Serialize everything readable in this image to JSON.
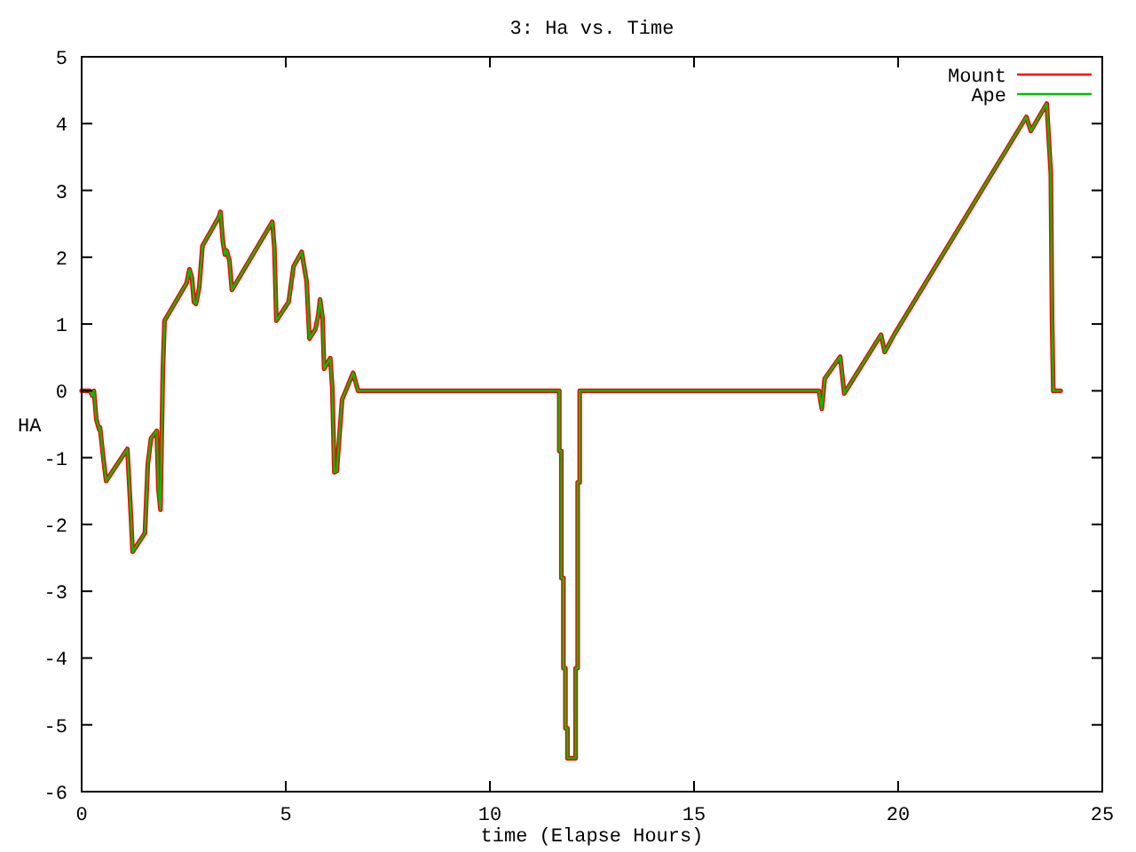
{
  "chart_data": {
    "type": "line",
    "title": "3: Ha vs. Time",
    "xlabel": "time (Elapse Hours)",
    "ylabel": "HA",
    "xlim": [
      0,
      25
    ],
    "xticks": [
      0,
      5,
      10,
      15,
      20,
      25
    ],
    "ylim": [
      -6,
      5
    ],
    "yticks": [
      -6,
      -5,
      -4,
      -3,
      -2,
      -1,
      0,
      1,
      2,
      3,
      4,
      5
    ],
    "grid": false,
    "legend": "top right",
    "line_style": "solid",
    "marker": "none",
    "series": [
      {
        "name": "Mount",
        "color": "#ff0000",
        "x": [
          0,
          0.2,
          0.26,
          0.3,
          0.36,
          0.43,
          0.45,
          0.53,
          0.6,
          1.12,
          1.19,
          1.25,
          1.55,
          1.62,
          1.7,
          1.84,
          1.88,
          1.93,
          1.99,
          2.03,
          2.57,
          2.64,
          2.7,
          2.75,
          2.8,
          2.88,
          2.96,
          3.36,
          3.4,
          3.46,
          3.51,
          3.55,
          3.62,
          3.68,
          4.67,
          4.72,
          4.77,
          5.07,
          5.19,
          5.39,
          5.51,
          5.58,
          5.73,
          5.8,
          5.84,
          5.9,
          5.94,
          6.09,
          6.14,
          6.19,
          6.25,
          6.38,
          6.65,
          6.77,
          11.7,
          11.7,
          11.75,
          11.75,
          11.8,
          11.8,
          11.85,
          11.85,
          11.9,
          11.9,
          12.1,
          12.1,
          12.15,
          12.15,
          12.2,
          12.2,
          18.06,
          18.13,
          18.2,
          18.58,
          18.68,
          19.58,
          19.67,
          19.91,
          23.14,
          23.25,
          23.64,
          23.74,
          23.77,
          23.8,
          23.98
        ],
        "values": [
          0,
          0,
          -0.07,
          0,
          -0.43,
          -0.58,
          -0.55,
          -1.0,
          -1.35,
          -0.87,
          -1.67,
          -2.41,
          -2.13,
          -1.1,
          -0.71,
          -0.6,
          -1.46,
          -1.78,
          0.32,
          1.05,
          1.61,
          1.82,
          1.7,
          1.33,
          1.3,
          1.55,
          2.17,
          2.6,
          2.68,
          2.23,
          2.04,
          2.1,
          1.95,
          1.51,
          2.53,
          2.15,
          1.05,
          1.33,
          1.86,
          2.08,
          1.64,
          0.78,
          0.93,
          1.15,
          1.37,
          1.1,
          0.33,
          0.49,
          0.04,
          -1.22,
          -1.2,
          -0.13,
          0.27,
          0,
          0,
          -0.9,
          -0.9,
          -2.8,
          -2.8,
          -4.15,
          -4.15,
          -5.05,
          -5.05,
          -5.5,
          -5.5,
          -4.15,
          -4.15,
          -1.37,
          -1.37,
          0,
          0,
          -0.27,
          0.18,
          0.51,
          -0.04,
          0.84,
          0.58,
          0.85,
          4.1,
          3.89,
          4.3,
          3.24,
          1.06,
          0,
          0
        ]
      },
      {
        "name": "Ape",
        "color": "#00c000",
        "x": [
          0,
          0.2,
          0.26,
          0.3,
          0.36,
          0.43,
          0.45,
          0.53,
          0.6,
          1.12,
          1.19,
          1.25,
          1.55,
          1.62,
          1.7,
          1.84,
          1.88,
          1.93,
          1.99,
          2.03,
          2.57,
          2.64,
          2.7,
          2.75,
          2.8,
          2.88,
          2.96,
          3.36,
          3.4,
          3.46,
          3.51,
          3.55,
          3.62,
          3.68,
          4.67,
          4.72,
          4.77,
          5.07,
          5.19,
          5.39,
          5.51,
          5.58,
          5.73,
          5.8,
          5.84,
          5.9,
          5.94,
          6.09,
          6.14,
          6.19,
          6.25,
          6.38,
          6.65,
          6.77,
          11.7,
          11.7,
          11.75,
          11.75,
          11.8,
          11.8,
          11.85,
          11.85,
          11.9,
          11.9,
          12.1,
          12.1,
          12.15,
          12.15,
          12.2,
          12.2,
          18.06,
          18.13,
          18.2,
          18.58,
          18.68,
          19.58,
          19.67,
          19.91,
          23.14,
          23.25,
          23.64,
          23.74,
          23.77,
          23.8,
          23.98
        ],
        "values": [
          0,
          0,
          -0.07,
          0,
          -0.43,
          -0.58,
          -0.55,
          -1.0,
          -1.35,
          -0.87,
          -1.67,
          -2.41,
          -2.13,
          -1.1,
          -0.71,
          -0.6,
          -1.46,
          -1.78,
          0.32,
          1.05,
          1.61,
          1.82,
          1.7,
          1.33,
          1.3,
          1.55,
          2.17,
          2.6,
          2.68,
          2.23,
          2.04,
          2.1,
          1.95,
          1.51,
          2.53,
          2.15,
          1.05,
          1.33,
          1.86,
          2.08,
          1.64,
          0.78,
          0.93,
          1.15,
          1.37,
          1.1,
          0.33,
          0.49,
          0.04,
          -1.22,
          -1.2,
          -0.13,
          0.27,
          0,
          0,
          -0.9,
          -0.9,
          -2.8,
          -2.8,
          -4.15,
          -4.15,
          -5.05,
          -5.05,
          -5.5,
          -5.5,
          -4.15,
          -4.15,
          -1.37,
          -1.37,
          0,
          0,
          -0.27,
          0.18,
          0.51,
          -0.04,
          0.84,
          0.58,
          0.85,
          4.1,
          3.89,
          4.3,
          3.24,
          1.06,
          0,
          0
        ]
      }
    ]
  }
}
